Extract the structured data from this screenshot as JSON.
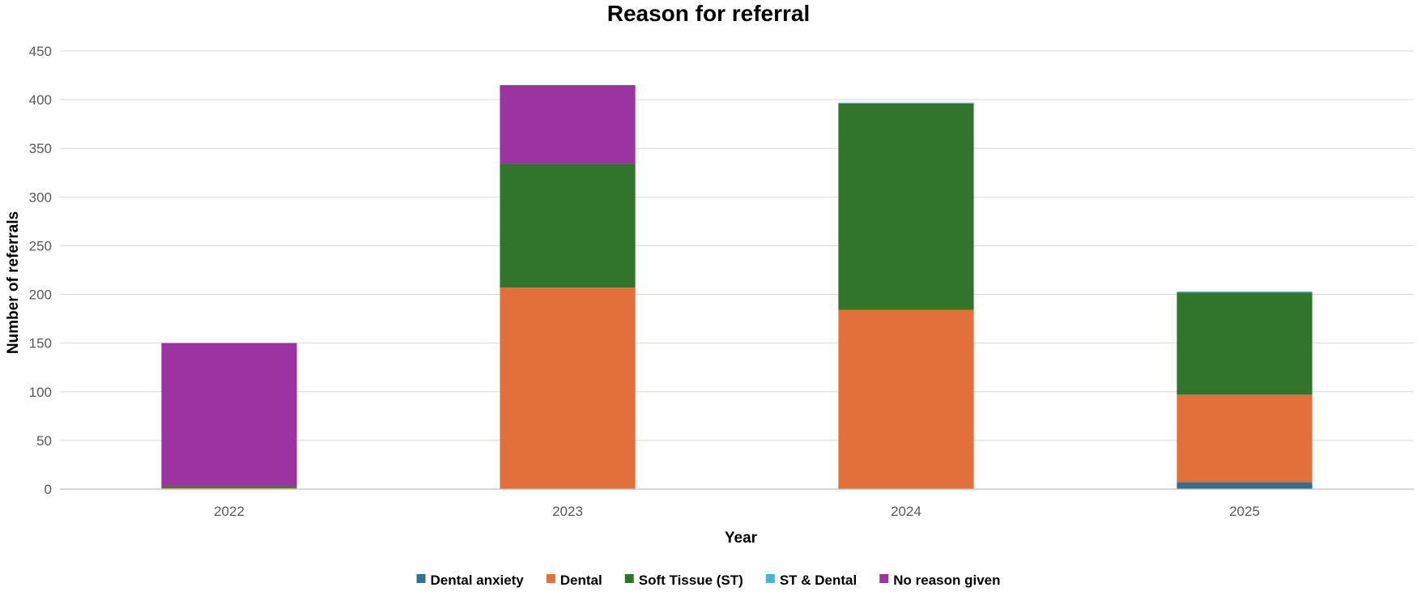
{
  "chart_data": {
    "type": "bar",
    "stacked": true,
    "title": "Reason for referral",
    "xlabel": "Year",
    "ylabel": "Number of referrals",
    "categories": [
      "2022",
      "2023",
      "2024",
      "2025"
    ],
    "ylim": [
      0,
      450
    ],
    "yticks": [
      0,
      50,
      100,
      150,
      200,
      250,
      300,
      350,
      400,
      450
    ],
    "grid": true,
    "legend_position": "bottom",
    "series": [
      {
        "name": "Dental anxiety",
        "color": "#31708f",
        "values": [
          0,
          0,
          0,
          7
        ]
      },
      {
        "name": "Dental",
        "color": "#e3703a",
        "values": [
          1,
          207,
          184,
          90
        ]
      },
      {
        "name": "Soft Tissue (ST)",
        "color": "#31752c",
        "values": [
          2,
          127,
          212,
          105
        ]
      },
      {
        "name": "ST & Dental",
        "color": "#4fb0d8",
        "values": [
          0,
          0,
          1,
          1
        ]
      },
      {
        "name": "No reason given",
        "color": "#9b33a1",
        "values": [
          147,
          81,
          0,
          0
        ]
      }
    ]
  }
}
